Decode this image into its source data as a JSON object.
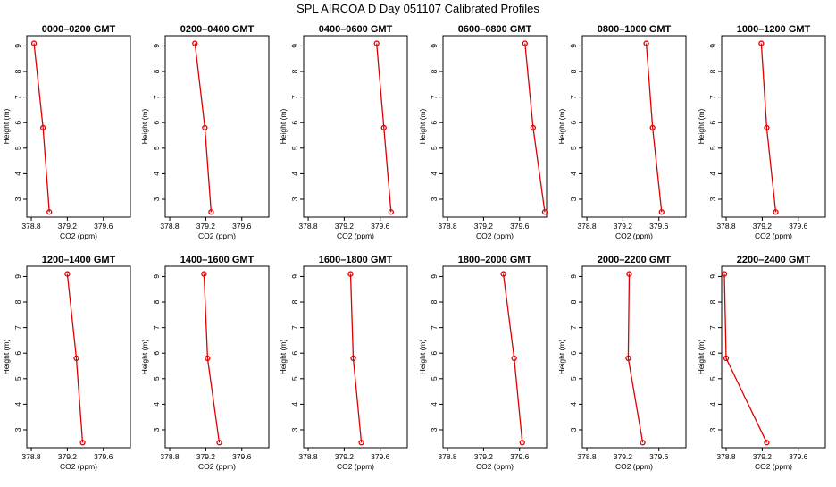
{
  "figure": {
    "title": "SPL AIRCOA D  Day 051107  Calibrated Profiles",
    "xlabel": "CO2 (ppm)",
    "ylabel": "Height (m)",
    "colors": {
      "series": "#dd0000",
      "axes": "#000000",
      "background": "#ffffff"
    }
  },
  "chart_data": [
    {
      "type": "line",
      "title": "0000–0200 GMT",
      "xlim": [
        378.75,
        379.9
      ],
      "ylim": [
        2.3,
        9.4
      ],
      "xticks": [
        "378.8",
        "379.2",
        "379.6"
      ],
      "yticks": [
        "3",
        "4",
        "5",
        "6",
        "7",
        "8",
        "9"
      ],
      "series": [
        {
          "x": [
            378.83,
            378.93,
            379.0
          ],
          "y": [
            9.1,
            5.8,
            2.5
          ]
        }
      ]
    },
    {
      "type": "line",
      "title": "0200–0400 GMT",
      "xlim": [
        378.75,
        379.9
      ],
      "ylim": [
        2.3,
        9.4
      ],
      "xticks": [
        "378.8",
        "379.2",
        "379.6"
      ],
      "yticks": [
        "3",
        "4",
        "5",
        "6",
        "7",
        "8",
        "9"
      ],
      "series": [
        {
          "x": [
            379.08,
            379.19,
            379.26
          ],
          "y": [
            9.1,
            5.8,
            2.5
          ]
        }
      ]
    },
    {
      "type": "line",
      "title": "0400–0600 GMT",
      "xlim": [
        378.75,
        379.9
      ],
      "ylim": [
        2.3,
        9.4
      ],
      "xticks": [
        "378.8",
        "379.2",
        "379.6"
      ],
      "yticks": [
        "3",
        "4",
        "5",
        "6",
        "7",
        "8",
        "9"
      ],
      "series": [
        {
          "x": [
            379.56,
            379.64,
            379.72
          ],
          "y": [
            9.1,
            5.8,
            2.5
          ]
        }
      ]
    },
    {
      "type": "line",
      "title": "0600–0800 GMT",
      "xlim": [
        378.75,
        379.9
      ],
      "ylim": [
        2.3,
        9.4
      ],
      "xticks": [
        "378.8",
        "379.2",
        "379.6"
      ],
      "yticks": [
        "3",
        "4",
        "5",
        "6",
        "7",
        "8",
        "9"
      ],
      "series": [
        {
          "x": [
            379.66,
            379.75,
            379.88
          ],
          "y": [
            9.1,
            5.8,
            2.5
          ]
        }
      ]
    },
    {
      "type": "line",
      "title": "0800–1000 GMT",
      "xlim": [
        378.75,
        379.9
      ],
      "ylim": [
        2.3,
        9.4
      ],
      "xticks": [
        "378.8",
        "379.2",
        "379.6"
      ],
      "yticks": [
        "3",
        "4",
        "5",
        "6",
        "7",
        "8",
        "9"
      ],
      "series": [
        {
          "x": [
            379.46,
            379.53,
            379.63
          ],
          "y": [
            9.1,
            5.8,
            2.5
          ]
        }
      ]
    },
    {
      "type": "line",
      "title": "1000–1200 GMT",
      "xlim": [
        378.75,
        379.9
      ],
      "ylim": [
        2.3,
        9.4
      ],
      "xticks": [
        "378.8",
        "379.2",
        "379.6"
      ],
      "yticks": [
        "3",
        "4",
        "5",
        "6",
        "7",
        "8",
        "9"
      ],
      "series": [
        {
          "x": [
            379.19,
            379.25,
            379.35
          ],
          "y": [
            9.1,
            5.8,
            2.5
          ]
        }
      ]
    },
    {
      "type": "line",
      "title": "1200–1400 GMT",
      "xlim": [
        378.75,
        379.9
      ],
      "ylim": [
        2.3,
        9.4
      ],
      "xticks": [
        "378.8",
        "379.2",
        "379.6"
      ],
      "yticks": [
        "3",
        "4",
        "5",
        "6",
        "7",
        "8",
        "9"
      ],
      "series": [
        {
          "x": [
            379.2,
            379.3,
            379.37
          ],
          "y": [
            9.1,
            5.8,
            2.5
          ]
        }
      ]
    },
    {
      "type": "line",
      "title": "1400–1600 GMT",
      "xlim": [
        378.75,
        379.9
      ],
      "ylim": [
        2.3,
        9.4
      ],
      "xticks": [
        "378.8",
        "379.2",
        "379.6"
      ],
      "yticks": [
        "3",
        "4",
        "5",
        "6",
        "7",
        "8",
        "9"
      ],
      "series": [
        {
          "x": [
            379.18,
            379.22,
            379.35
          ],
          "y": [
            9.1,
            5.8,
            2.5
          ]
        }
      ]
    },
    {
      "type": "line",
      "title": "1600–1800 GMT",
      "xlim": [
        378.75,
        379.9
      ],
      "ylim": [
        2.3,
        9.4
      ],
      "xticks": [
        "378.8",
        "379.2",
        "379.6"
      ],
      "yticks": [
        "3",
        "4",
        "5",
        "6",
        "7",
        "8",
        "9"
      ],
      "series": [
        {
          "x": [
            379.27,
            379.3,
            379.39
          ],
          "y": [
            9.1,
            5.8,
            2.5
          ]
        }
      ]
    },
    {
      "type": "line",
      "title": "1800–2000 GMT",
      "xlim": [
        378.75,
        379.9
      ],
      "ylim": [
        2.3,
        9.4
      ],
      "xticks": [
        "378.8",
        "379.2",
        "379.6"
      ],
      "yticks": [
        "3",
        "4",
        "5",
        "6",
        "7",
        "8",
        "9"
      ],
      "series": [
        {
          "x": [
            379.42,
            379.54,
            379.63
          ],
          "y": [
            9.1,
            5.8,
            2.5
          ]
        }
      ]
    },
    {
      "type": "line",
      "title": "2000–2200 GMT",
      "xlim": [
        378.75,
        379.9
      ],
      "ylim": [
        2.3,
        9.4
      ],
      "xticks": [
        "378.8",
        "379.2",
        "379.6"
      ],
      "yticks": [
        "3",
        "4",
        "5",
        "6",
        "7",
        "8",
        "9"
      ],
      "series": [
        {
          "x": [
            379.27,
            379.26,
            379.42
          ],
          "y": [
            9.1,
            5.8,
            2.5
          ]
        }
      ]
    },
    {
      "type": "line",
      "title": "2200–2400 GMT",
      "xlim": [
        378.75,
        379.9
      ],
      "ylim": [
        2.3,
        9.4
      ],
      "xticks": [
        "378.8",
        "379.2",
        "379.6"
      ],
      "yticks": [
        "3",
        "4",
        "5",
        "6",
        "7",
        "8",
        "9"
      ],
      "series": [
        {
          "x": [
            378.78,
            378.8,
            379.25
          ],
          "y": [
            9.1,
            5.8,
            2.5
          ]
        }
      ]
    }
  ]
}
